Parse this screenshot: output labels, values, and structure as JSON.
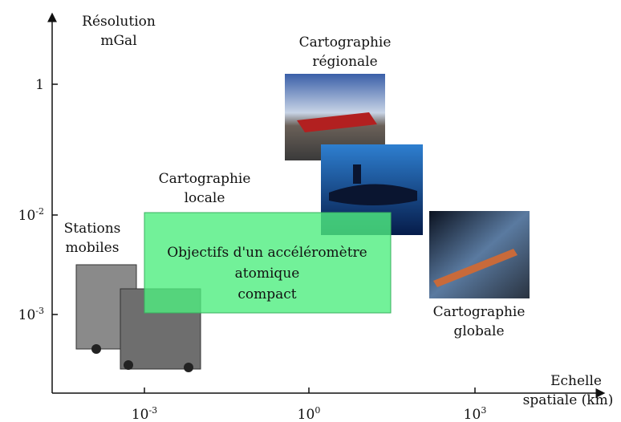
{
  "y_axis": {
    "label": [
      "Résolution",
      "mGal"
    ],
    "ticks": [
      {
        "base": "1"
      },
      {
        "base": "10",
        "exponent": "-2"
      },
      {
        "base": "10",
        "exponent": "-3"
      }
    ]
  },
  "x_axis": {
    "label": [
      "Echelle",
      "spatiale (km)"
    ],
    "ticks": [
      {
        "base": "10",
        "exponent": "-3"
      },
      {
        "base": "10",
        "exponent": "0"
      },
      {
        "base": "10",
        "exponent": "3"
      }
    ]
  },
  "regions": [
    {
      "label": [
        "Cartographie",
        "régionale"
      ]
    },
    {
      "label": [
        "Cartographie",
        "locale"
      ]
    },
    {
      "label": [
        "Stations",
        "mobiles"
      ]
    },
    {
      "label": [
        "Cartographie",
        "globale"
      ]
    },
    {
      "label": [
        "Objectifs d'un accéléromètre",
        "atomique",
        "compact"
      ]
    }
  ]
}
